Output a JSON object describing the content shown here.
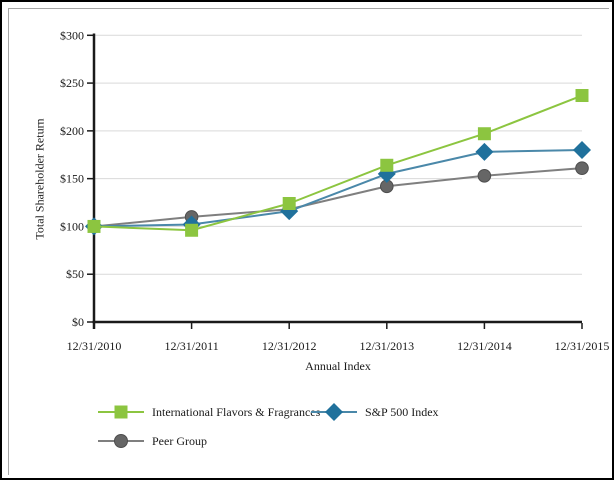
{
  "chart_data": {
    "type": "line",
    "title": "",
    "xlabel": "Annual Index",
    "ylabel": "Total Shareholder Return",
    "categories": [
      "12/31/2010",
      "12/31/2011",
      "12/31/2012",
      "12/31/2013",
      "12/31/2014",
      "12/31/2015"
    ],
    "y_ticks": [
      "$0",
      "$50",
      "$100",
      "$150",
      "$200",
      "$250",
      "$300"
    ],
    "y_tick_values": [
      0,
      50,
      100,
      150,
      200,
      250,
      300
    ],
    "ylim": [
      0,
      300
    ],
    "grid": "horizontal-only",
    "legend_position": "bottom",
    "series": [
      {
        "name": "International Flavors & Fragrances",
        "marker": "square",
        "color": "#8CC540",
        "line_color": "#8CC540",
        "values": [
          100,
          96,
          124,
          164,
          197,
          237
        ]
      },
      {
        "name": "S&P 500 Index",
        "marker": "diamond",
        "color": "#20719C",
        "line_color": "#4A88A9",
        "values": [
          100,
          102,
          116,
          155,
          178,
          180
        ]
      },
      {
        "name": "Peer Group",
        "marker": "circle",
        "color": "#666666",
        "line_color": "#7F7F7F",
        "values": [
          100,
          110,
          118,
          142,
          153,
          161
        ]
      }
    ],
    "colors": {
      "grid": "#D9D9D9",
      "axis": "#1A1A1A",
      "circle_stroke": "#4D4D4D"
    }
  }
}
